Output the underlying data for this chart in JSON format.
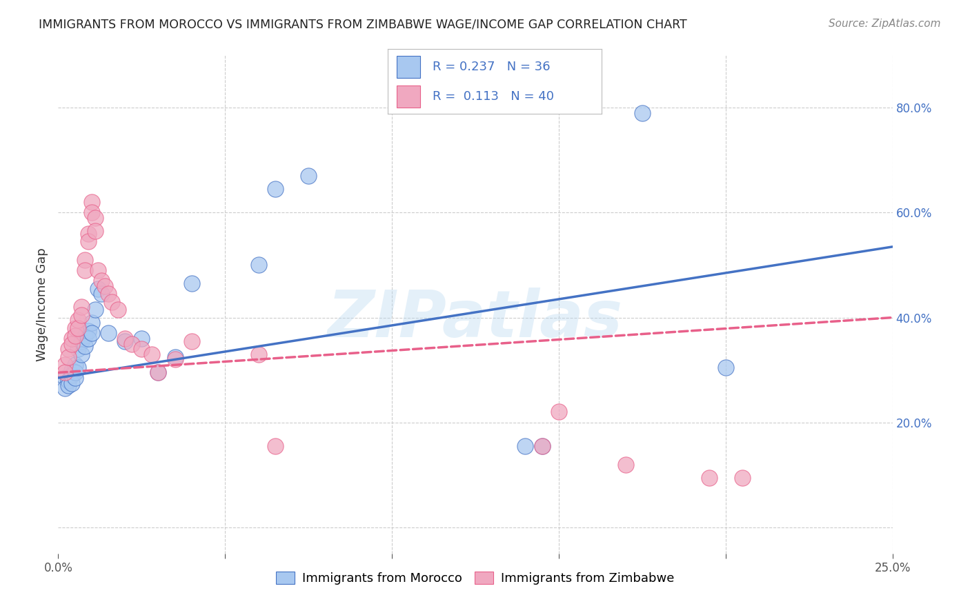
{
  "title": "IMMIGRANTS FROM MOROCCO VS IMMIGRANTS FROM ZIMBABWE WAGE/INCOME GAP CORRELATION CHART",
  "source": "Source: ZipAtlas.com",
  "ylabel": "Wage/Income Gap",
  "watermark": "ZIPatlas",
  "morocco_color": "#a8c8f0",
  "zimbabwe_color": "#f0a8c0",
  "morocco_line_color": "#4472C4",
  "zimbabwe_line_color": "#E8608A",
  "morocco_R": 0.237,
  "morocco_N": 36,
  "zimbabwe_R": 0.113,
  "zimbabwe_N": 40,
  "morocco_scatter_x": [
    0.002,
    0.002,
    0.003,
    0.003,
    0.004,
    0.004,
    0.004,
    0.005,
    0.005,
    0.005,
    0.006,
    0.006,
    0.007,
    0.007,
    0.008,
    0.008,
    0.009,
    0.009,
    0.01,
    0.01,
    0.011,
    0.012,
    0.013,
    0.015,
    0.02,
    0.025,
    0.03,
    0.035,
    0.04,
    0.06,
    0.065,
    0.075,
    0.14,
    0.145,
    0.175,
    0.2
  ],
  "morocco_scatter_y": [
    0.285,
    0.265,
    0.28,
    0.27,
    0.3,
    0.29,
    0.275,
    0.31,
    0.295,
    0.285,
    0.34,
    0.305,
    0.355,
    0.33,
    0.365,
    0.345,
    0.375,
    0.36,
    0.39,
    0.37,
    0.415,
    0.455,
    0.445,
    0.37,
    0.355,
    0.36,
    0.295,
    0.325,
    0.465,
    0.5,
    0.645,
    0.67,
    0.155,
    0.155,
    0.79,
    0.305
  ],
  "zimbabwe_scatter_x": [
    0.002,
    0.002,
    0.003,
    0.003,
    0.004,
    0.004,
    0.005,
    0.005,
    0.006,
    0.006,
    0.007,
    0.007,
    0.008,
    0.008,
    0.009,
    0.009,
    0.01,
    0.01,
    0.011,
    0.011,
    0.012,
    0.013,
    0.014,
    0.015,
    0.016,
    0.018,
    0.02,
    0.022,
    0.025,
    0.028,
    0.03,
    0.035,
    0.04,
    0.06,
    0.065,
    0.145,
    0.15,
    0.17,
    0.195,
    0.205
  ],
  "zimbabwe_scatter_y": [
    0.31,
    0.295,
    0.34,
    0.325,
    0.36,
    0.35,
    0.38,
    0.365,
    0.395,
    0.38,
    0.42,
    0.405,
    0.51,
    0.49,
    0.56,
    0.545,
    0.62,
    0.6,
    0.59,
    0.565,
    0.49,
    0.47,
    0.46,
    0.445,
    0.43,
    0.415,
    0.36,
    0.35,
    0.34,
    0.33,
    0.295,
    0.32,
    0.355,
    0.33,
    0.155,
    0.155,
    0.22,
    0.12,
    0.095,
    0.095
  ],
  "xlim": [
    0.0,
    0.25
  ],
  "ylim": [
    -0.05,
    0.9
  ],
  "background_color": "#ffffff",
  "grid_color": "#cccccc",
  "morocco_line_x0": 0.0,
  "morocco_line_y0": 0.285,
  "morocco_line_x1": 0.25,
  "morocco_line_y1": 0.535,
  "zimbabwe_line_x0": 0.0,
  "zimbabwe_line_y0": 0.295,
  "zimbabwe_line_x1": 0.25,
  "zimbabwe_line_y1": 0.4
}
